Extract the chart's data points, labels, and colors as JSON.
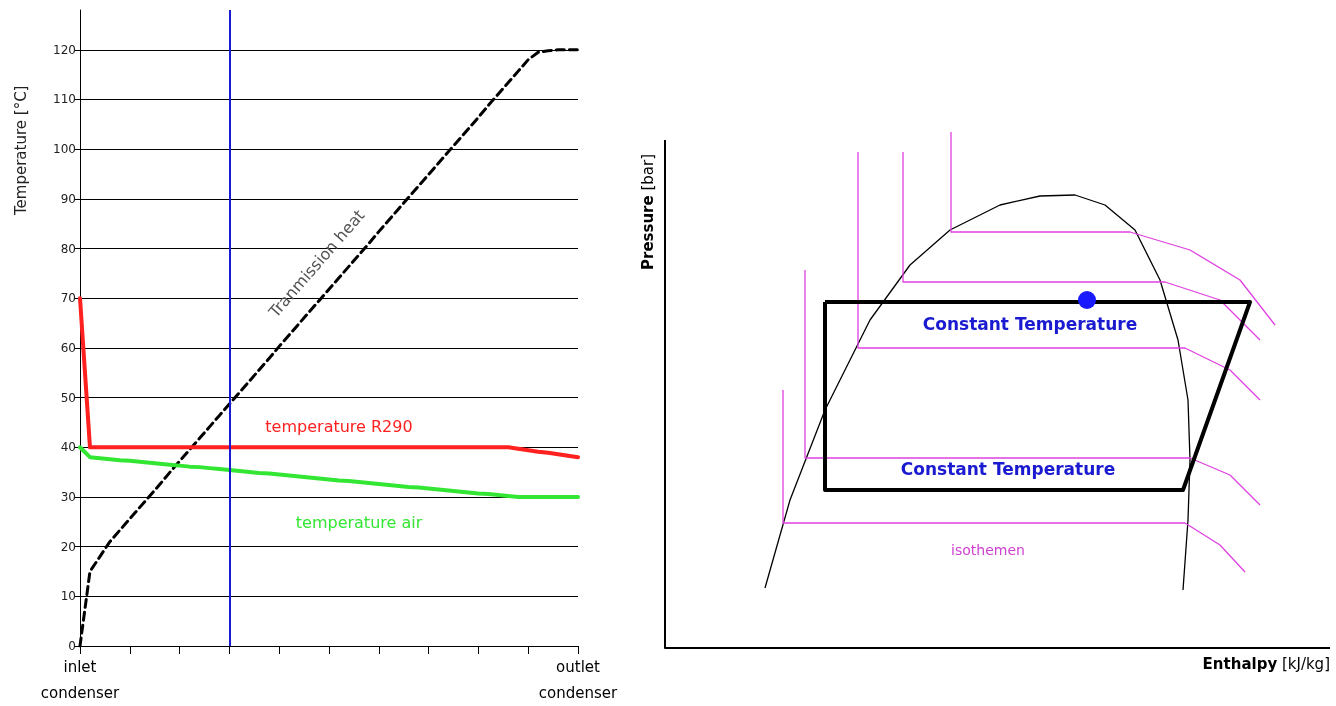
{
  "chart_data": [
    {
      "type": "line",
      "ylabel": "Temperature [°C]",
      "categories": [
        "inlet\ncondenser",
        null,
        null,
        null,
        null,
        null,
        null,
        null,
        null,
        null,
        null,
        null,
        null,
        null,
        null,
        null,
        null,
        null,
        null,
        null,
        null,
        null,
        null,
        null,
        null,
        null,
        null,
        null,
        null,
        null,
        null,
        null,
        null,
        null,
        null,
        null,
        null,
        null,
        null,
        null,
        null,
        null,
        null,
        null,
        null,
        null,
        null,
        null,
        null,
        null,
        "outlet\ncondenser"
      ],
      "ylim": [
        0,
        128
      ],
      "yticks": [
        0,
        10,
        20,
        30,
        40,
        50,
        60,
        70,
        80,
        90,
        100,
        110,
        120
      ],
      "grid": "y",
      "marker": "none",
      "series": [
        {
          "name": "Tranmission heat",
          "color": "#000000",
          "line_style": "dashed",
          "values": [
            0,
            15,
            18,
            21,
            23.3,
            25.6,
            27.9,
            30.2,
            32.5,
            34.9,
            37.2,
            39.5,
            41.8,
            44.1,
            46.4,
            48.7,
            51,
            53.3,
            55.6,
            57.9,
            60.3,
            62.6,
            64.9,
            67.2,
            69.5,
            71.8,
            74.1,
            76.4,
            78.7,
            81,
            83.4,
            85.7,
            88,
            90.3,
            92.6,
            94.9,
            97.2,
            99.5,
            101.8,
            104.1,
            106.4,
            108.8,
            111.1,
            113.4,
            115.7,
            118,
            119.5,
            119.8,
            120,
            120,
            120
          ]
        },
        {
          "name": "temperature R290",
          "color": "#ff2020",
          "values": [
            70,
            40,
            40,
            40,
            40,
            40,
            40,
            40,
            40,
            40,
            40,
            40,
            40,
            40,
            40,
            40,
            40,
            40,
            40,
            40,
            40,
            40,
            40,
            40,
            40,
            40,
            40,
            40,
            40,
            40,
            40,
            40,
            40,
            40,
            40,
            40,
            40,
            40,
            40,
            40,
            40,
            40,
            40,
            40,
            39.7,
            39.4,
            39.1,
            38.9,
            38.6,
            38.3,
            38
          ]
        },
        {
          "name": "temperature air",
          "color": "#33e633",
          "values": [
            40,
            38,
            37.8,
            37.6,
            37.4,
            37.3,
            37.1,
            36.9,
            36.7,
            36.5,
            36.3,
            36.1,
            36,
            35.8,
            35.6,
            35.4,
            35.2,
            35,
            34.8,
            34.7,
            34.5,
            34.3,
            34.1,
            33.9,
            33.7,
            33.5,
            33.3,
            33.2,
            33,
            32.8,
            32.6,
            32.4,
            32.2,
            32,
            31.9,
            31.7,
            31.5,
            31.3,
            31.1,
            30.9,
            30.7,
            30.6,
            30.4,
            30.2,
            30,
            30,
            30,
            30,
            30,
            30,
            30
          ]
        }
      ]
    },
    {
      "type": "other",
      "xlabel": "Enthalpy [kJ/kg]",
      "ylabel": "Pressure [bar]",
      "annotations": [
        "Constant Temperature",
        "Constant Temperature",
        "isothemen"
      ]
    }
  ]
}
